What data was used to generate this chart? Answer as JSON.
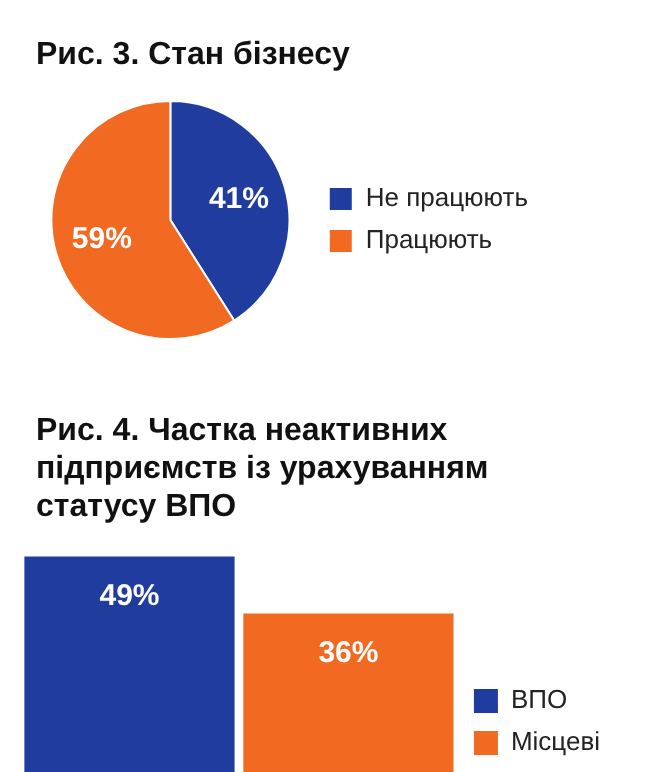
{
  "chart_data": [
    {
      "type": "pie",
      "title": "Рис. 3. Стан бізнесу",
      "categories": [
        "Не працюють",
        "Працюють"
      ],
      "values": [
        41,
        59
      ],
      "colors": [
        "#1f3c9e",
        "#f26a21"
      ],
      "value_labels": [
        "41%",
        "59%"
      ],
      "legend": "right"
    },
    {
      "type": "bar",
      "title": "Рис. 4. Частка неактивних підприємств із урахуванням статусу ВПО",
      "categories": [
        null
      ],
      "series": [
        {
          "name": "ВПО",
          "color": "#1f3c9e",
          "values": [
            49
          ],
          "value_labels": [
            "49%"
          ]
        },
        {
          "name": "Місцеві",
          "color": "#f26a21",
          "values": [
            36
          ],
          "value_labels": [
            "36%"
          ]
        }
      ],
      "legend": "bottom right",
      "tick_labels": false
    }
  ]
}
